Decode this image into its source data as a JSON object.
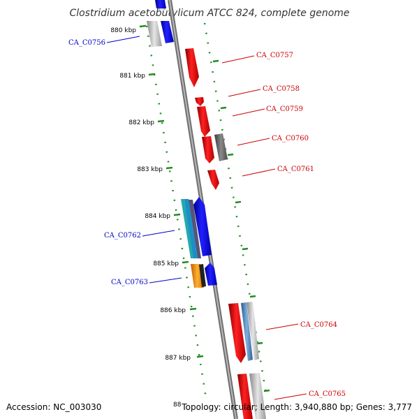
{
  "title": "Clostridium acetobutylicum ATCC 824, complete genome",
  "footer": {
    "accession": "Accession: NC_003030",
    "topology": "Topology: circular; Length: 3,940,880 bp; Genes: 3,777",
    "partial_tick": "88"
  },
  "ticks": [
    "880 kbp",
    "881 kbp",
    "882 kbp",
    "883 kbp",
    "884 kbp",
    "885 kbp",
    "886 kbp",
    "887 kbp"
  ],
  "genes": [
    {
      "label": "CA_C0756",
      "color": "#0000cc"
    },
    {
      "label": "CA_C0757",
      "color": "#cc0000"
    },
    {
      "label": "CA_C0758",
      "color": "#cc0000"
    },
    {
      "label": "CA_C0759",
      "color": "#cc0000"
    },
    {
      "label": "CA_C0760",
      "color": "#cc0000"
    },
    {
      "label": "CA_C0761",
      "color": "#cc0000"
    },
    {
      "label": "CA_C0762",
      "color": "#0000cc"
    },
    {
      "label": "CA_C0763",
      "color": "#0000cc"
    },
    {
      "label": "CA_C0764",
      "color": "#cc0000"
    },
    {
      "label": "CA_C0765",
      "color": "#cc0000"
    }
  ],
  "colors": {
    "forward_strand": "#ee0000",
    "reverse_strand": "#0000ee",
    "backbone": "#888888",
    "dotted_ring": "#228b22",
    "gray_feature": "#aaaaaa",
    "orange_feature": "#ff9900",
    "cyan_feature": "#22aaaa"
  }
}
